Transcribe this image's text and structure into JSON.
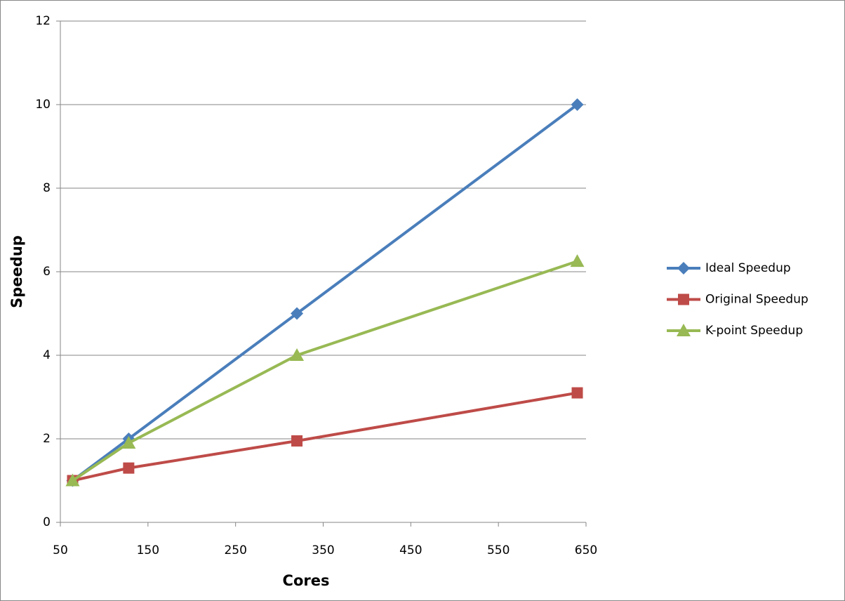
{
  "chart_data": {
    "type": "line",
    "x_label": "Cores",
    "y_label": "Speedup",
    "x": [
      64,
      128,
      320,
      640
    ],
    "series": [
      {
        "name": "Ideal Speedup",
        "color": "#4a7ebb",
        "marker": "diamond",
        "values": [
          1,
          2,
          5,
          10
        ]
      },
      {
        "name": "Original Speedup",
        "color": "#be4b48",
        "marker": "square",
        "values": [
          1,
          1.3,
          1.95,
          3.1
        ]
      },
      {
        "name": "K-point Speedup",
        "color": "#98b954",
        "marker": "triangle",
        "values": [
          1,
          1.9,
          4,
          6.25
        ]
      }
    ],
    "xlim": [
      50,
      650
    ],
    "xticks": [
      50,
      150,
      250,
      350,
      450,
      550,
      650
    ],
    "ylim": [
      0,
      12
    ],
    "yticks": [
      0,
      2,
      4,
      6,
      8,
      10,
      12
    ],
    "grid": true,
    "legend": "right"
  }
}
